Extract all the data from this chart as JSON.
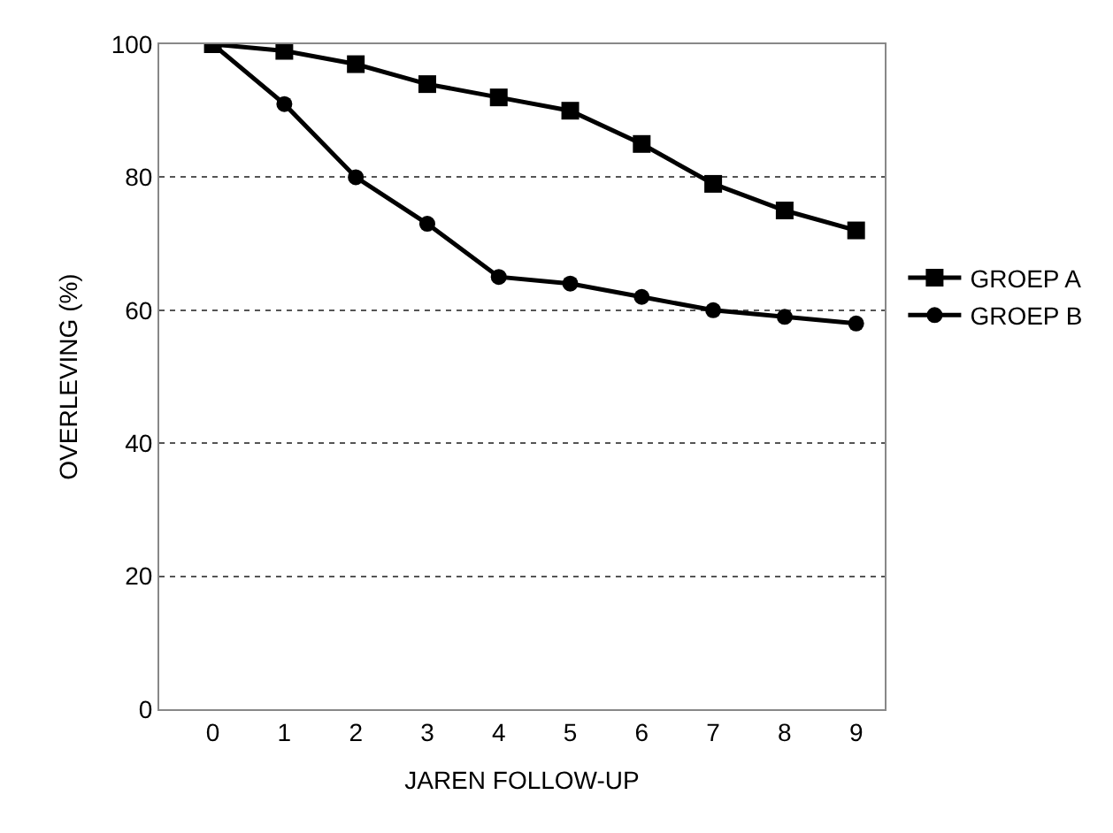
{
  "chart_data": {
    "type": "line",
    "xlabel": "JAREN FOLLOW-UP",
    "ylabel": "OVERLEVING (%)",
    "x": [
      0,
      1,
      2,
      3,
      4,
      5,
      6,
      7,
      8,
      9
    ],
    "series": [
      {
        "name": "GROEP A",
        "color": "#000000",
        "marker": "square",
        "values": [
          100,
          99,
          97,
          94,
          92,
          90,
          85,
          79,
          75,
          72
        ]
      },
      {
        "name": "GROEP B",
        "color": "#000000",
        "marker": "circle",
        "values": [
          100,
          91,
          80,
          73,
          65,
          64,
          62,
          60,
          59,
          58
        ]
      }
    ],
    "xlim": [
      -0.75,
      9.4
    ],
    "xticks": [
      0,
      1,
      2,
      3,
      4,
      5,
      6,
      7,
      8,
      9
    ],
    "ylim": [
      0,
      100
    ],
    "yticks": [
      0,
      20,
      40,
      60,
      80,
      100
    ],
    "grid": "y",
    "legend": "right",
    "line_style": "solid"
  }
}
